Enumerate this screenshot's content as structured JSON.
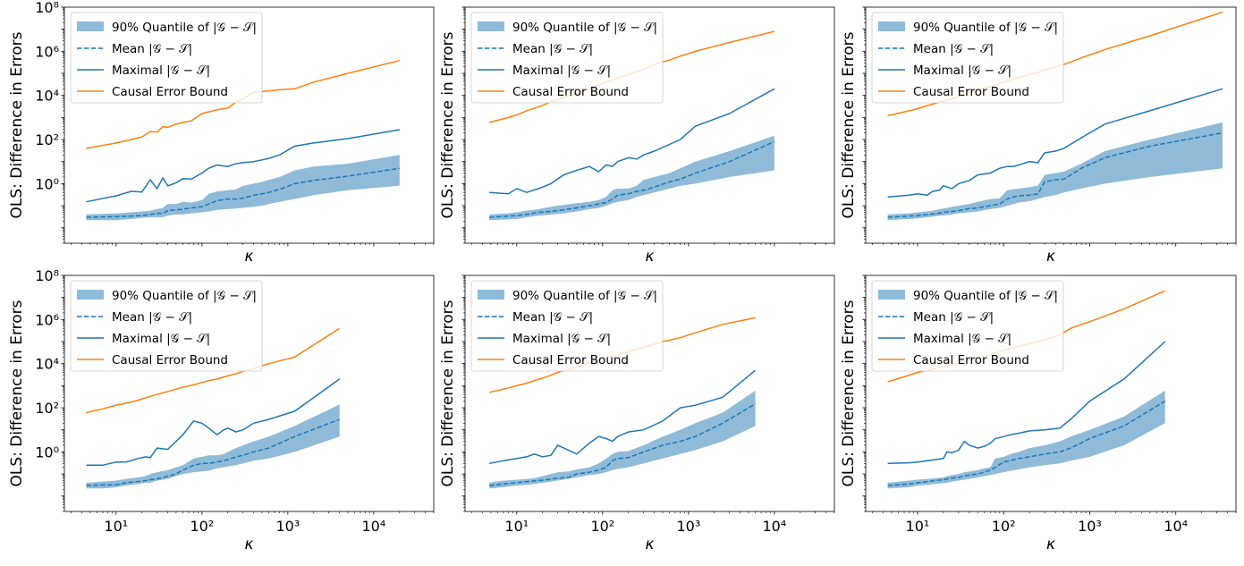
{
  "figure": {
    "colors": {
      "band": "#1f77b4",
      "line": "#1f77b4",
      "bound": "#ff7f0e",
      "band_opacity": 0.5
    }
  },
  "chart_data": [
    {
      "type": "line",
      "panel": "top-left",
      "xscale": "log",
      "yscale": "log",
      "xlim": [
        2.5,
        50000
      ],
      "ylim": [
        0.002,
        100000000.0
      ],
      "xlabel": "κ",
      "ylabel": "OLS: Difference in Errors",
      "show_xticklabels": false,
      "show_yticklabels": true,
      "legend": [
        "90% Quantile of |𝒢 − 𝒮|",
        "Mean |𝒢 − 𝒮|",
        "Maximal |𝒢 − 𝒮|",
        "Causal Error Bound"
      ],
      "x": [
        4.5,
        10,
        15,
        20,
        25,
        30,
        35,
        40,
        50,
        60,
        75,
        100,
        120,
        150,
        200,
        250,
        300,
        400,
        500,
        600,
        800,
        1200,
        2000,
        5000,
        20000
      ],
      "quantile_lower": [
        0.022,
        0.022,
        0.025,
        0.028,
        0.03,
        0.03,
        0.03,
        0.035,
        0.04,
        0.04,
        0.045,
        0.05,
        0.055,
        0.065,
        0.07,
        0.075,
        0.08,
        0.09,
        0.1,
        0.12,
        0.15,
        0.2,
        0.3,
        0.5,
        0.8
      ],
      "quantile_upper": [
        0.04,
        0.045,
        0.05,
        0.055,
        0.06,
        0.07,
        0.08,
        0.12,
        0.12,
        0.15,
        0.14,
        0.18,
        0.35,
        0.45,
        0.5,
        0.55,
        0.8,
        1,
        1.2,
        1.5,
        2,
        4,
        6,
        8,
        20
      ],
      "mean": [
        0.03,
        0.032,
        0.034,
        0.036,
        0.04,
        0.045,
        0.045,
        0.06,
        0.065,
        0.07,
        0.08,
        0.09,
        0.12,
        0.17,
        0.2,
        0.2,
        0.22,
        0.3,
        0.35,
        0.4,
        0.55,
        1,
        1.4,
        2.2,
        5
      ],
      "maximal": [
        0.15,
        0.28,
        0.45,
        0.42,
        1.5,
        0.6,
        1.8,
        0.8,
        1.1,
        1.7,
        1.6,
        3,
        5,
        7,
        6,
        8,
        9,
        10,
        12,
        14,
        20,
        50,
        70,
        110,
        280
      ],
      "bound": [
        40,
        70,
        100,
        130,
        230,
        220,
        380,
        360,
        500,
        600,
        700,
        1500,
        1800,
        2200,
        2700,
        5000,
        7000,
        14000,
        15000,
        16000,
        18000,
        20000,
        40000,
        100000,
        380000
      ]
    },
    {
      "type": "line",
      "panel": "top-middle",
      "xscale": "log",
      "yscale": "log",
      "xlim": [
        2.5,
        50000
      ],
      "ylim": [
        0.002,
        100000000.0
      ],
      "xlabel": "κ",
      "ylabel": "OLS: Difference in Errors",
      "show_xticklabels": false,
      "show_yticklabels": false,
      "legend": [
        "90% Quantile of |𝒢 − 𝒮|",
        "Mean |𝒢 − 𝒮|",
        "Maximal |𝒢 − 𝒮|",
        "Causal Error Bound"
      ],
      "x": [
        4.8,
        8,
        10,
        13,
        18,
        25,
        35,
        50,
        70,
        90,
        110,
        130,
        150,
        200,
        250,
        300,
        400,
        600,
        800,
        1200,
        3000,
        10000
      ],
      "quantile_lower": [
        0.022,
        0.024,
        0.025,
        0.03,
        0.035,
        0.04,
        0.045,
        0.055,
        0.07,
        0.08,
        0.1,
        0.13,
        0.15,
        0.18,
        0.25,
        0.3,
        0.4,
        0.6,
        0.8,
        1,
        2,
        4
      ],
      "quantile_upper": [
        0.04,
        0.045,
        0.05,
        0.06,
        0.07,
        0.09,
        0.11,
        0.13,
        0.15,
        0.18,
        0.25,
        0.5,
        0.6,
        0.6,
        0.8,
        1.5,
        2,
        3,
        5,
        10,
        30,
        150
      ],
      "mean": [
        0.03,
        0.034,
        0.036,
        0.04,
        0.05,
        0.055,
        0.065,
        0.08,
        0.1,
        0.12,
        0.14,
        0.2,
        0.3,
        0.35,
        0.45,
        0.5,
        0.7,
        1.2,
        1.6,
        3,
        10,
        80
      ],
      "maximal": [
        0.4,
        0.35,
        0.6,
        0.4,
        0.6,
        1,
        2.5,
        4,
        6,
        3.5,
        7,
        6,
        10,
        15,
        13,
        20,
        30,
        60,
        100,
        400,
        1500,
        20000
      ],
      "bound": [
        600,
        1000,
        1300,
        2000,
        3000,
        5000,
        8000,
        12000,
        20000,
        30000,
        40000,
        50000,
        60000,
        90000,
        120000,
        150000,
        250000,
        400000,
        600000,
        1000000,
        2500000,
        8000000
      ]
    },
    {
      "type": "line",
      "panel": "top-right",
      "xscale": "log",
      "yscale": "log",
      "xlim": [
        2.5,
        50000
      ],
      "ylim": [
        0.002,
        100000000.0
      ],
      "xlabel": "κ",
      "ylabel": "OLS: Difference in Errors",
      "show_xticklabels": false,
      "show_yticklabels": false,
      "legend": [
        "90% Quantile of |𝒢 − 𝒮|",
        "Mean |𝒢 − 𝒮|",
        "Maximal |𝒢 − 𝒮|",
        "Causal Error Bound"
      ],
      "x": [
        4.5,
        8,
        10,
        13,
        15,
        18,
        20,
        25,
        30,
        40,
        50,
        70,
        90,
        110,
        130,
        150,
        200,
        250,
        300,
        400,
        500,
        800,
        1500,
        5000,
        35000
      ],
      "quantile_lower": [
        0.022,
        0.025,
        0.027,
        0.03,
        0.032,
        0.035,
        0.036,
        0.04,
        0.045,
        0.05,
        0.055,
        0.07,
        0.08,
        0.1,
        0.12,
        0.14,
        0.16,
        0.2,
        0.25,
        0.3,
        0.4,
        0.6,
        1,
        2,
        5
      ],
      "quantile_upper": [
        0.04,
        0.045,
        0.05,
        0.055,
        0.06,
        0.07,
        0.075,
        0.09,
        0.1,
        0.12,
        0.15,
        0.2,
        0.22,
        0.5,
        0.55,
        0.6,
        0.7,
        0.8,
        2.5,
        3,
        3.5,
        8,
        30,
        100,
        600
      ],
      "mean": [
        0.03,
        0.034,
        0.036,
        0.04,
        0.042,
        0.046,
        0.05,
        0.055,
        0.06,
        0.075,
        0.08,
        0.1,
        0.12,
        0.2,
        0.25,
        0.28,
        0.3,
        0.35,
        1.2,
        1.5,
        1.6,
        5,
        15,
        50,
        200
      ],
      "maximal": [
        0.25,
        0.3,
        0.35,
        0.3,
        0.45,
        0.5,
        0.8,
        0.6,
        1,
        1.4,
        2.5,
        3,
        5,
        6,
        6,
        7,
        10,
        9,
        25,
        30,
        40,
        120,
        500,
        2000,
        20000
      ],
      "bound": [
        1200,
        2000,
        2500,
        3500,
        4000,
        5000,
        5500,
        7000,
        9000,
        13000,
        17000,
        25000,
        35000,
        45000,
        55000,
        65000,
        90000,
        110000,
        140000,
        200000,
        250000,
        500000,
        1200000,
        5000000,
        60000000
      ]
    },
    {
      "type": "line",
      "panel": "bottom-left",
      "xscale": "log",
      "yscale": "log",
      "xlim": [
        2.5,
        50000
      ],
      "ylim": [
        0.002,
        100000000.0
      ],
      "xlabel": "κ",
      "ylabel": "OLS: Difference in Errors",
      "show_xticklabels": true,
      "show_yticklabels": true,
      "legend": [
        "90% Quantile of |𝒢 − 𝒮|",
        "Mean |𝒢 − 𝒮|",
        "Maximal |𝒢 − 𝒮|",
        "Causal Error Bound"
      ],
      "x": [
        4.5,
        7,
        10,
        13,
        18,
        22,
        25,
        30,
        40,
        50,
        60,
        80,
        100,
        120,
        150,
        180,
        200,
        250,
        300,
        400,
        600,
        1200,
        4000
      ],
      "quantile_lower": [
        0.022,
        0.022,
        0.025,
        0.03,
        0.035,
        0.04,
        0.04,
        0.05,
        0.06,
        0.08,
        0.1,
        0.12,
        0.13,
        0.14,
        0.18,
        0.2,
        0.22,
        0.25,
        0.3,
        0.4,
        0.5,
        1,
        5
      ],
      "quantile_upper": [
        0.04,
        0.045,
        0.05,
        0.06,
        0.07,
        0.08,
        0.1,
        0.12,
        0.15,
        0.2,
        0.25,
        0.5,
        0.6,
        0.7,
        0.7,
        0.8,
        1,
        1.5,
        2,
        3,
        5,
        15,
        140
      ],
      "mean": [
        0.03,
        0.032,
        0.032,
        0.04,
        0.045,
        0.05,
        0.055,
        0.06,
        0.08,
        0.1,
        0.15,
        0.25,
        0.3,
        0.3,
        0.35,
        0.4,
        0.45,
        0.6,
        0.7,
        1,
        1.5,
        5,
        30
      ],
      "maximal": [
        0.25,
        0.25,
        0.35,
        0.35,
        0.5,
        0.6,
        0.55,
        1.5,
        1.3,
        3,
        6,
        25,
        20,
        12,
        6,
        10,
        12,
        8,
        10,
        20,
        30,
        70,
        2000
      ],
      "bound": [
        60,
        90,
        130,
        160,
        220,
        280,
        330,
        400,
        550,
        700,
        850,
        1100,
        1400,
        1700,
        2000,
        2500,
        2800,
        3500,
        4500,
        6000,
        10000,
        20000,
        400000
      ]
    },
    {
      "type": "line",
      "panel": "bottom-middle",
      "xscale": "log",
      "yscale": "log",
      "xlim": [
        2.5,
        50000
      ],
      "ylim": [
        0.002,
        100000000.0
      ],
      "xlabel": "κ",
      "ylabel": "OLS: Difference in Errors",
      "show_xticklabels": true,
      "show_yticklabels": false,
      "legend": [
        "90% Quantile of |𝒢 − 𝒮|",
        "Mean |𝒢 − 𝒮|",
        "Maximal |𝒢 − 𝒮|",
        "Causal Error Bound"
      ],
      "x": [
        4.8,
        7,
        10,
        13,
        16,
        20,
        25,
        30,
        40,
        50,
        70,
        90,
        110,
        130,
        150,
        200,
        300,
        500,
        800,
        1200,
        2500,
        6000
      ],
      "quantile_lower": [
        0.022,
        0.025,
        0.03,
        0.032,
        0.035,
        0.04,
        0.045,
        0.05,
        0.06,
        0.07,
        0.09,
        0.1,
        0.12,
        0.15,
        0.17,
        0.2,
        0.3,
        0.5,
        0.8,
        1.2,
        3,
        15
      ],
      "quantile_upper": [
        0.04,
        0.05,
        0.055,
        0.06,
        0.065,
        0.08,
        0.1,
        0.12,
        0.13,
        0.16,
        0.2,
        0.3,
        0.5,
        0.8,
        1,
        1.1,
        2,
        5,
        10,
        20,
        60,
        600
      ],
      "mean": [
        0.03,
        0.035,
        0.04,
        0.045,
        0.048,
        0.052,
        0.058,
        0.065,
        0.07,
        0.1,
        0.12,
        0.15,
        0.2,
        0.4,
        0.5,
        0.55,
        1,
        2,
        3,
        5,
        20,
        150
      ],
      "maximal": [
        0.3,
        0.4,
        0.5,
        0.6,
        0.8,
        0.6,
        0.7,
        2,
        1.2,
        0.8,
        2.5,
        5,
        4,
        3,
        5,
        8,
        10,
        25,
        100,
        130,
        300,
        5000
      ],
      "bound": [
        500,
        700,
        1000,
        1300,
        1700,
        2200,
        3000,
        4000,
        5500,
        7000,
        11000,
        14000,
        18000,
        22000,
        25000,
        35000,
        55000,
        100000,
        150000,
        250000,
        600000,
        1200000
      ]
    },
    {
      "type": "line",
      "panel": "bottom-right",
      "xscale": "log",
      "yscale": "log",
      "xlim": [
        2.5,
        50000
      ],
      "ylim": [
        0.002,
        100000000.0
      ],
      "xlabel": "κ",
      "ylabel": "OLS: Difference in Errors",
      "show_xticklabels": true,
      "show_yticklabels": false,
      "legend": [
        "90% Quantile of |𝒢 − 𝒮|",
        "Mean |𝒢 − 𝒮|",
        "Maximal |𝒢 − 𝒮|",
        "Causal Error Bound"
      ],
      "x": [
        4.5,
        8,
        10,
        13,
        16,
        20,
        22,
        25,
        30,
        35,
        40,
        50,
        60,
        70,
        80,
        100,
        120,
        150,
        200,
        300,
        450,
        600,
        1000,
        2500,
        7500
      ],
      "quantile_lower": [
        0.022,
        0.025,
        0.03,
        0.032,
        0.035,
        0.038,
        0.04,
        0.045,
        0.05,
        0.055,
        0.06,
        0.07,
        0.08,
        0.09,
        0.1,
        0.12,
        0.14,
        0.16,
        0.2,
        0.25,
        0.3,
        0.4,
        0.6,
        2,
        20
      ],
      "quantile_upper": [
        0.04,
        0.05,
        0.055,
        0.06,
        0.065,
        0.07,
        0.08,
        0.09,
        0.1,
        0.12,
        0.13,
        0.15,
        0.18,
        0.2,
        0.5,
        0.6,
        0.8,
        1,
        1.5,
        2,
        3,
        5,
        10,
        40,
        600
      ],
      "mean": [
        0.03,
        0.035,
        0.04,
        0.045,
        0.05,
        0.055,
        0.06,
        0.065,
        0.07,
        0.08,
        0.09,
        0.1,
        0.12,
        0.15,
        0.2,
        0.35,
        0.4,
        0.5,
        0.6,
        0.8,
        1,
        1.5,
        4,
        15,
        200
      ],
      "maximal": [
        0.3,
        0.32,
        0.35,
        0.4,
        0.45,
        0.5,
        1,
        0.9,
        1.2,
        3,
        2,
        1.5,
        1.8,
        2.5,
        4,
        5,
        6,
        7,
        9,
        10,
        12,
        30,
        200,
        2000,
        100000
      ],
      "bound": [
        1500,
        3000,
        4000,
        5000,
        6000,
        7500,
        8000,
        9000,
        11000,
        13000,
        15000,
        18000,
        22000,
        26000,
        30000,
        40000,
        50000,
        60000,
        80000,
        120000,
        200000,
        400000,
        800000,
        3000000,
        20000000
      ]
    }
  ]
}
